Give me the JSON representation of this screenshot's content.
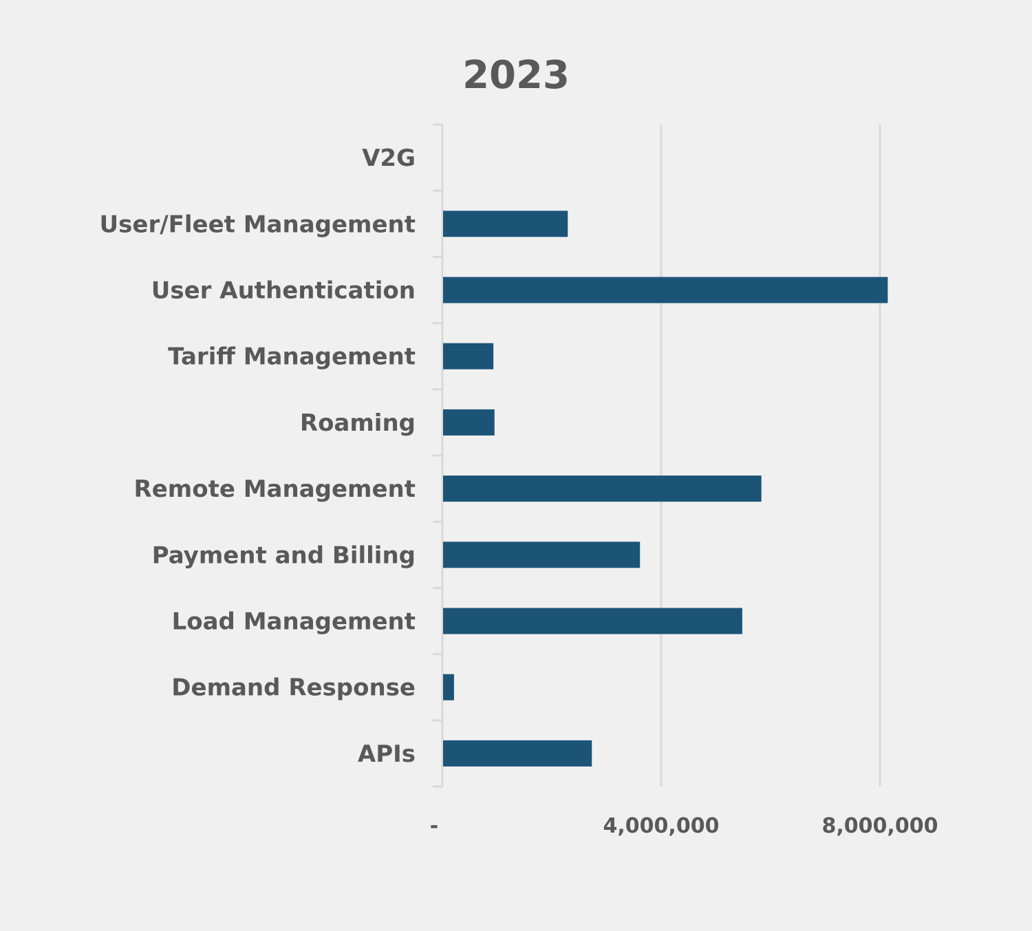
{
  "chart_data": {
    "type": "bar",
    "orientation": "horizontal",
    "title": "2023",
    "xlabel": "",
    "ylabel": "",
    "categories": [
      "V2G",
      "User/Fleet Management",
      "User Authentication",
      "Tariff Management",
      "Roaming",
      "Remote Management",
      "Payment and Billing",
      "Load Management",
      "Demand Response",
      "APIs"
    ],
    "values": [
      0,
      2280000,
      8130000,
      920000,
      940000,
      5820000,
      3600000,
      5470000,
      200000,
      2720000
    ],
    "xlim": [
      0,
      8000000
    ],
    "x_ticks": [
      0,
      4000000,
      8000000
    ],
    "x_tick_labels": [
      "-",
      "4,000,000",
      "8,000,000"
    ],
    "grid": "vertical",
    "legend": "none",
    "colors": {
      "bar": "#1c5478",
      "text": "#595959",
      "grid": "#d9d9d9",
      "background": "#f0f0f0"
    }
  }
}
